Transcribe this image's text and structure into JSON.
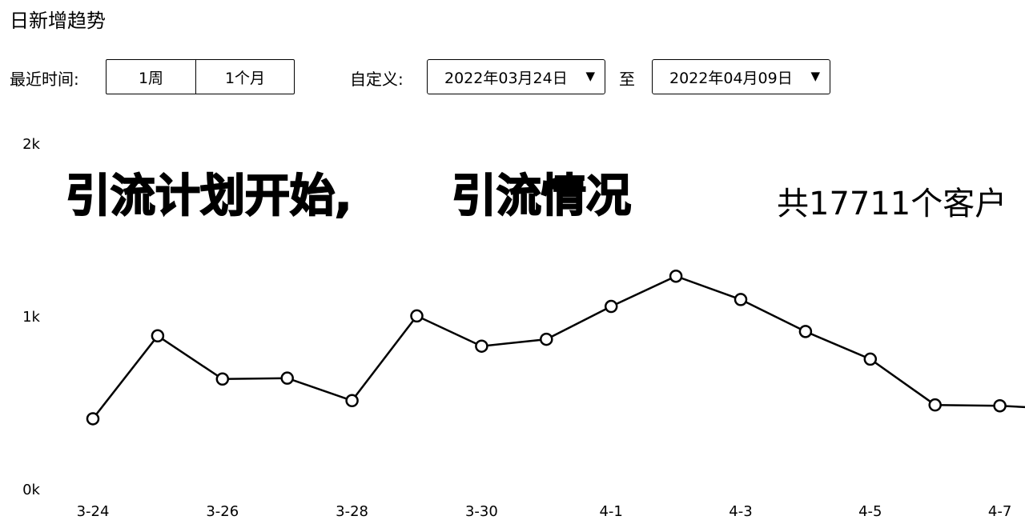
{
  "header": {
    "title": "日新增趋势"
  },
  "filters": {
    "recent_label": "最近时间:",
    "options": [
      "1周",
      "1个月"
    ],
    "custom_label": "自定义:",
    "start_date": "2022年03月24日",
    "end_date": "2022年04月09日",
    "to_label": "至",
    "dropdown_arrow": "▼"
  },
  "overlays": {
    "left": "引流计划开始,",
    "middle": "引流情况",
    "right": "共17711个客户"
  },
  "chart_data": {
    "type": "line",
    "x": [
      "3-24",
      "3-25",
      "3-26",
      "3-27",
      "3-28",
      "3-29",
      "3-30",
      "3-31",
      "4-1",
      "4-2",
      "4-3",
      "4-4",
      "4-5",
      "4-6",
      "4-7",
      "4-8"
    ],
    "x_tick_labels": [
      "3-24",
      "3-26",
      "3-28",
      "3-30",
      "4-1",
      "4-3",
      "4-5",
      "4-7"
    ],
    "values": [
      410,
      890,
      640,
      645,
      515,
      1005,
      830,
      870,
      1060,
      1235,
      1100,
      915,
      755,
      490,
      485,
      465
    ],
    "y_ticks": [
      "0k",
      "1k",
      "2k"
    ],
    "ylim": [
      0,
      2000
    ],
    "line_color": "#000000",
    "marker_fill": "#ffffff",
    "grid": false
  }
}
